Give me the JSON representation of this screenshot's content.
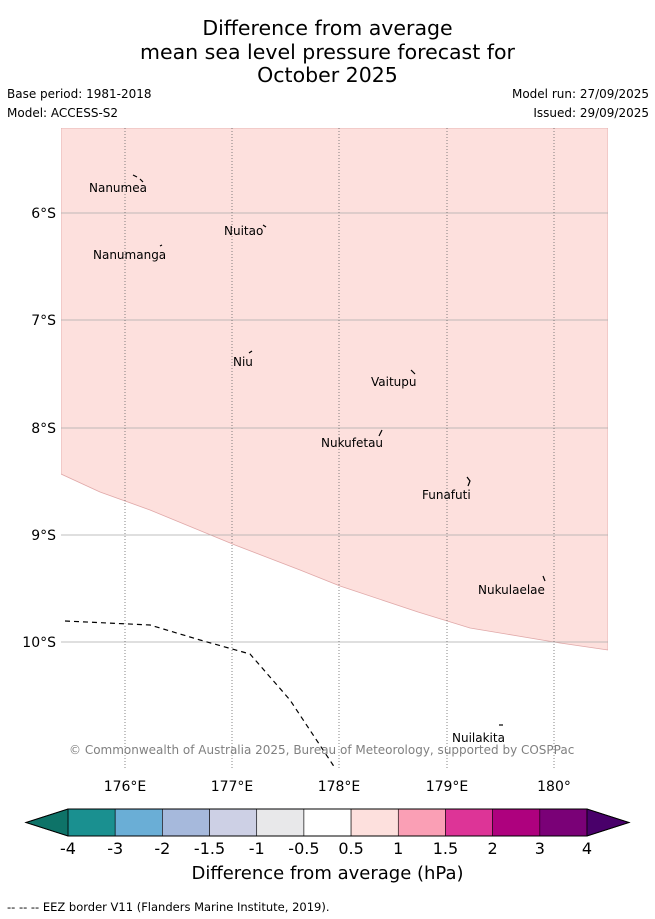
{
  "title": {
    "line1": "Difference from average",
    "line2": "mean sea level pressure forecast for",
    "line3": "October 2025"
  },
  "meta": {
    "base_period": "Base period: 1981-2018",
    "model": "Model: ACCESS-S2",
    "model_run": "Model run: 27/09/2025",
    "issued": "Issued: 29/09/2025"
  },
  "map": {
    "lat_labels": [
      "6°S",
      "7°S",
      "8°S",
      "9°S",
      "10°S"
    ],
    "lon_labels": [
      "176°E",
      "177°E",
      "178°E",
      "179°E",
      "180°"
    ],
    "places": [
      "Nanumea",
      "Nuitao",
      "Nanumanga",
      "Niu",
      "Vaitupu",
      "Nukufetau",
      "Funafuti",
      "Nukulaelae",
      "Nuilakita"
    ],
    "shaded_region_value": "0.5 to 1 hPa",
    "colors": {
      "shade": "#fde0dd",
      "border": "#e8a0a0"
    },
    "copyright": "© Commonwealth of Australia 2025, Bureau of Meteorology, supported by COSPPac"
  },
  "colorbar": {
    "tick_labels": [
      "-4",
      "-3",
      "-2",
      "-1.5",
      "-1",
      "-0.5",
      "0.5",
      "1",
      "1.5",
      "2",
      "3",
      "4"
    ],
    "colors": [
      "#1a9090",
      "#6aaed6",
      "#a6b9dc",
      "#cdd0e5",
      "#e8e8ea",
      "#ffffff",
      "#fde0dd",
      "#fa9fb5",
      "#dd3497",
      "#ae017e",
      "#7a0177"
    ],
    "extend_low": "#0e7368",
    "extend_high": "#49006a",
    "title": "Difference from average (hPa)"
  },
  "legend": {
    "eez": "-- -- -- EEZ border V11 (Flanders Marine Institute, 2019)."
  }
}
